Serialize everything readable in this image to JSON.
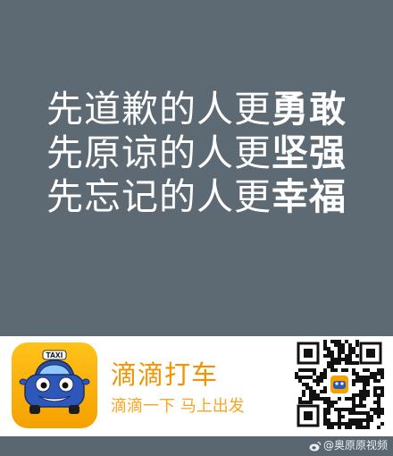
{
  "poster": {
    "lines": [
      {
        "text": "先道歉的人更",
        "highlight": "勇敢"
      },
      {
        "text": "先原谅的人更",
        "highlight": "坚强"
      },
      {
        "text": "先忘记的人更",
        "highlight": "幸福"
      }
    ]
  },
  "ad": {
    "app_name": "滴滴打车",
    "slogan": "滴滴一下 马上出发",
    "icon_sign_text": "TAXI",
    "icon": "taxi-car-icon",
    "accent_color": "#f29400",
    "icon_bg_color": "#ffb400"
  },
  "watermark": {
    "text": "@奥原原视频",
    "icon": "weibo-icon"
  },
  "colors": {
    "background": "#5d6973",
    "text": "#ffffff"
  }
}
